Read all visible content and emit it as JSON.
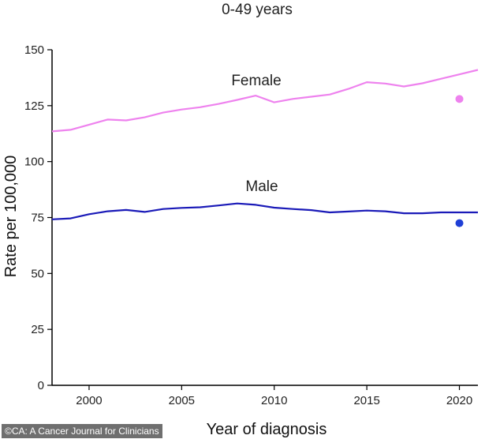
{
  "credit": "©CA: A Cancer Journal for Clinicians",
  "colors": {
    "female": "#ee82ee",
    "male": "#1a1ab8",
    "female_point": "#ee82ee",
    "male_point": "#1f3fd6",
    "axis": "#000000"
  },
  "chart_data": {
    "type": "line",
    "title": "0-49 years",
    "xlabel": "Year of diagnosis",
    "ylabel": "Rate per 100,000",
    "xlim": [
      1998,
      2021
    ],
    "ylim": [
      0,
      150
    ],
    "xticks": [
      2000,
      2005,
      2010,
      2015,
      2020
    ],
    "yticks": [
      0,
      25,
      50,
      75,
      100,
      125,
      150
    ],
    "grid": false,
    "legend": "none",
    "series": [
      {
        "name": "Female",
        "key": "female",
        "x": [
          1998,
          1999,
          2000,
          2001,
          2002,
          2003,
          2004,
          2005,
          2006,
          2007,
          2008,
          2009,
          2010,
          2011,
          2012,
          2013,
          2014,
          2015,
          2016,
          2017,
          2018,
          2019,
          2020,
          2021
        ],
        "y": [
          113.5,
          114.2,
          116.5,
          118.8,
          118.4,
          119.8,
          121.9,
          123.3,
          124.3,
          125.8,
          127.6,
          129.5,
          126.5,
          128.0,
          129.0,
          130.0,
          132.5,
          135.5,
          134.9,
          133.6,
          135.0,
          137.0,
          139.0,
          141.0
        ]
      },
      {
        "name": "Male",
        "key": "male",
        "x": [
          1998,
          1999,
          2000,
          2001,
          2002,
          2003,
          2004,
          2005,
          2006,
          2007,
          2008,
          2009,
          2010,
          2011,
          2012,
          2013,
          2014,
          2015,
          2016,
          2017,
          2018,
          2019,
          2020,
          2021
        ],
        "y": [
          74.2,
          74.6,
          76.5,
          77.8,
          78.4,
          77.5,
          78.8,
          79.3,
          79.6,
          80.4,
          81.3,
          80.7,
          79.4,
          78.8,
          78.3,
          77.3,
          77.7,
          78.1,
          77.8,
          76.9,
          76.9,
          77.3,
          77.3,
          77.3
        ]
      }
    ],
    "points": [
      {
        "series": "Female",
        "key": "female_point",
        "x": 2020,
        "y": 128
      },
      {
        "series": "Male",
        "key": "male_point",
        "x": 2020,
        "y": 72.5
      }
    ]
  }
}
